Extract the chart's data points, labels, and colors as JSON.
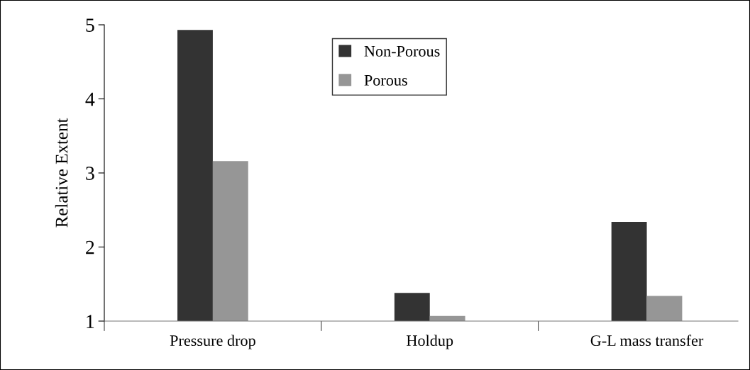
{
  "chart_data": {
    "type": "bar",
    "ylabel": "Relative Extent",
    "categories": [
      "Pressure drop",
      "Holdup",
      "G-L mass transfer"
    ],
    "series": [
      {
        "name": "Non-Porous",
        "color": "#333333",
        "values": [
          4.93,
          1.38,
          2.34
        ]
      },
      {
        "name": "Porous",
        "color": "#969696",
        "values": [
          3.16,
          1.07,
          1.34
        ]
      }
    ],
    "ylim": [
      1,
      5
    ],
    "yticks": [
      1,
      2,
      3,
      4,
      5
    ],
    "grid": false,
    "legend": "top"
  }
}
